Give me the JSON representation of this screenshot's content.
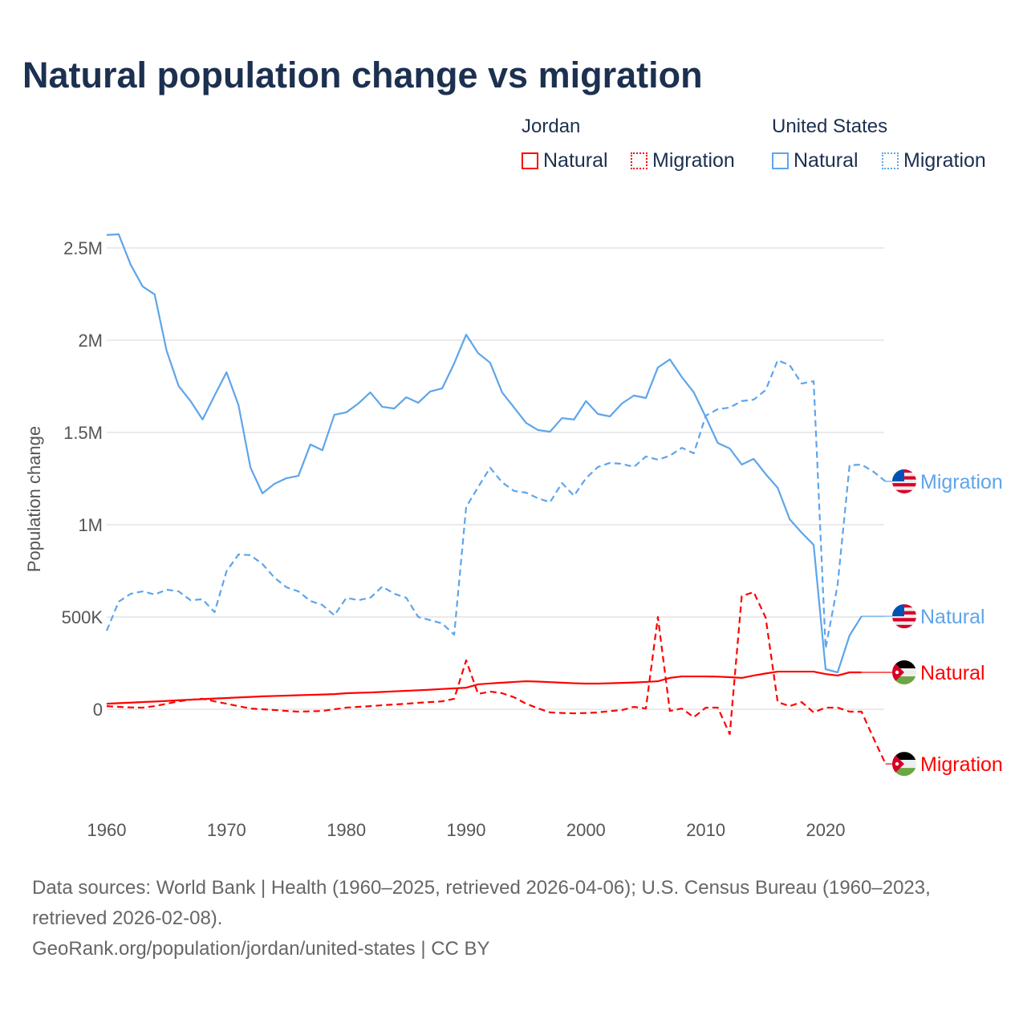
{
  "title": "Natural population change vs migration",
  "legend": {
    "groups": [
      {
        "label": "Jordan",
        "items": [
          {
            "label": "Natural",
            "style": "solid",
            "color": "#ff0000"
          },
          {
            "label": "Migration",
            "style": "dotted",
            "color": "#ff0000"
          }
        ]
      },
      {
        "label": "United States",
        "items": [
          {
            "label": "Natural",
            "style": "solid",
            "color": "#5ea5ea"
          },
          {
            "label": "Migration",
            "style": "dotted",
            "color": "#5ea5ea"
          }
        ]
      }
    ]
  },
  "footer": {
    "sources": "Data sources: World Bank | Health (1960–2025, retrieved 2026-04-06); U.S. Census Bureau (1960–2023, retrieved 2026-02-08).",
    "link": "GeoRank.org/population/jordan/united-states | CC BY"
  },
  "chart_data": {
    "type": "line",
    "title": "Natural population change vs migration",
    "xlabel": "",
    "ylabel": "Population change",
    "units": "thousands",
    "xlim": [
      1960,
      2025
    ],
    "ylim": [
      -500,
      2600
    ],
    "x_ticks": [
      1960,
      1970,
      1980,
      1990,
      2000,
      2010,
      2020
    ],
    "x_tick_labels": [
      "1960",
      "1970",
      "1980",
      "1990",
      "2000",
      "2010",
      "2020"
    ],
    "y_ticks": [
      0,
      500,
      1000,
      1500,
      2000,
      2500
    ],
    "y_tick_labels": [
      "0",
      "500K",
      "1M",
      "1.5M",
      "2M",
      "2.5M"
    ],
    "grid": true,
    "series": [
      {
        "name": "United States Natural",
        "end_label": "Natural",
        "flag": "us",
        "color": "#5ea5ea",
        "dash": false,
        "start_year": 1960,
        "values": [
          2570,
          2574,
          2409,
          2291,
          2248,
          1943,
          1752,
          1670,
          1570,
          1700,
          1826,
          1648,
          1309,
          1170,
          1222,
          1252,
          1265,
          1435,
          1404,
          1596,
          1609,
          1657,
          1717,
          1639,
          1630,
          1691,
          1661,
          1722,
          1739,
          1874,
          2030,
          1930,
          1878,
          1717,
          1635,
          1552,
          1513,
          1504,
          1578,
          1570,
          1670,
          1600,
          1587,
          1657,
          1700,
          1687,
          1852,
          1896,
          1800,
          1717,
          1583,
          1443,
          1413,
          1326,
          1357,
          1274,
          1200,
          1030,
          957,
          891,
          217,
          200,
          400,
          504
        ]
      },
      {
        "name": "United States Migration",
        "end_label": "Migration",
        "flag": "us",
        "color": "#5ea5ea",
        "dash": true,
        "start_year": 1960,
        "values": [
          426,
          583,
          626,
          639,
          622,
          648,
          639,
          591,
          596,
          526,
          748,
          839,
          835,
          787,
          713,
          661,
          639,
          587,
          565,
          509,
          604,
          591,
          604,
          665,
          626,
          604,
          500,
          483,
          465,
          404,
          1096,
          1204,
          1309,
          1230,
          1183,
          1174,
          1143,
          1122,
          1226,
          1157,
          1252,
          1313,
          1335,
          1330,
          1313,
          1370,
          1352,
          1374,
          1417,
          1387,
          1591,
          1626,
          1635,
          1670,
          1678,
          1730,
          1891,
          1865,
          1765,
          1778,
          330,
          674,
          1322,
          1326,
          1287,
          1235
        ]
      },
      {
        "name": "Jordan Natural",
        "end_label": "Natural",
        "flag": "jo",
        "color": "#ff0000",
        "dash": false,
        "start_year": 1960,
        "values": [
          30,
          33,
          36,
          39,
          42,
          45,
          49,
          52,
          55,
          58,
          61,
          64,
          67,
          70,
          72,
          74,
          76,
          78,
          80,
          82,
          87,
          89,
          91,
          94,
          97,
          100,
          103,
          106,
          110,
          113,
          117,
          135,
          140,
          144,
          148,
          152,
          150,
          147,
          144,
          141,
          139,
          139,
          141,
          143,
          145,
          148,
          152,
          170,
          178,
          178,
          178,
          177,
          174,
          170,
          183,
          194,
          204,
          204,
          204,
          204,
          191,
          183,
          200,
          200
        ]
      },
      {
        "name": "Jordan Migration",
        "end_label": "Migration",
        "flag": "jo",
        "color": "#ff0000",
        "dash": true,
        "start_year": 1960,
        "values": [
          17,
          13,
          10,
          9,
          17,
          30,
          43,
          52,
          57,
          43,
          30,
          17,
          4,
          0,
          -4,
          -9,
          -13,
          -11,
          -9,
          0,
          9,
          13,
          17,
          22,
          26,
          30,
          35,
          39,
          43,
          57,
          265,
          83,
          96,
          87,
          65,
          30,
          5,
          -17,
          -20,
          -22,
          -20,
          -17,
          -10,
          -4,
          13,
          4,
          500,
          -9,
          4,
          -43,
          9,
          9,
          -135,
          613,
          635,
          496,
          39,
          17,
          39,
          -17,
          9,
          9,
          -13,
          -13,
          -157,
          -296
        ]
      }
    ]
  }
}
